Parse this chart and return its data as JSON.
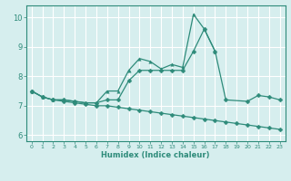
{
  "xlabel": "Humidex (Indice chaleur)",
  "background_color": "#d6eeee",
  "grid_color": "#ffffff",
  "line_color": "#2e8b7a",
  "ylim": [
    5.8,
    10.4
  ],
  "xlim": [
    -0.5,
    23.5
  ],
  "yticks": [
    6,
    7,
    8,
    9,
    10
  ],
  "line1_x": [
    0,
    1,
    2,
    3,
    4,
    5,
    6,
    7,
    8,
    9,
    10,
    11,
    12,
    13,
    14,
    15,
    16,
    17
  ],
  "line1_y": [
    7.5,
    7.3,
    7.2,
    7.2,
    7.15,
    7.1,
    7.1,
    7.5,
    7.5,
    8.2,
    8.6,
    8.5,
    8.25,
    8.4,
    8.3,
    10.1,
    9.6,
    8.85
  ],
  "line2_x": [
    0,
    1,
    2,
    3,
    4,
    5,
    6,
    7,
    8,
    9,
    10,
    11,
    12,
    13,
    14,
    15,
    16,
    17,
    18,
    20,
    21,
    22,
    23
  ],
  "line2_y": [
    7.5,
    7.3,
    7.2,
    7.2,
    7.15,
    7.1,
    7.1,
    7.2,
    7.2,
    7.85,
    8.2,
    8.2,
    8.2,
    8.2,
    8.2,
    8.85,
    9.6,
    8.85,
    7.2,
    7.15,
    7.35,
    7.3,
    7.2
  ],
  "line3_x": [
    0,
    1,
    2,
    3,
    4,
    5,
    6,
    7,
    8,
    9,
    10,
    11,
    12,
    13,
    14,
    15,
    16,
    17,
    18,
    19,
    20,
    21,
    22,
    23
  ],
  "line3_y": [
    7.5,
    7.3,
    7.2,
    7.15,
    7.1,
    7.05,
    7.0,
    7.0,
    6.95,
    6.9,
    6.85,
    6.8,
    6.75,
    6.7,
    6.65,
    6.6,
    6.55,
    6.5,
    6.45,
    6.4,
    6.35,
    6.3,
    6.25,
    6.2
  ]
}
